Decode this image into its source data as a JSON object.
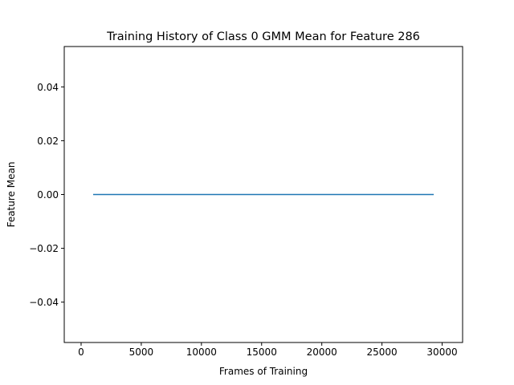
{
  "chart_data": {
    "type": "line",
    "title": "Training History of Class 0 GMM Mean for Feature 286",
    "xlabel": "Frames of Training",
    "ylabel": "Feature Mean",
    "xlim": [
      -1400,
      31700
    ],
    "ylim": [
      -0.055,
      0.055
    ],
    "x_ticks": [
      0,
      5000,
      10000,
      15000,
      20000,
      25000,
      30000
    ],
    "x_tick_labels": [
      "0",
      "5000",
      "10000",
      "15000",
      "20000",
      "25000",
      "30000"
    ],
    "y_ticks": [
      -0.04,
      -0.02,
      0.0,
      0.02,
      0.04
    ],
    "y_tick_labels": [
      "−0.04",
      "−0.02",
      "0.00",
      "0.02",
      "0.04"
    ],
    "grid": false,
    "series": [
      {
        "color": "#1f77b4",
        "x": [
          1000,
          29300
        ],
        "y": [
          0.0,
          0.0
        ]
      }
    ]
  }
}
